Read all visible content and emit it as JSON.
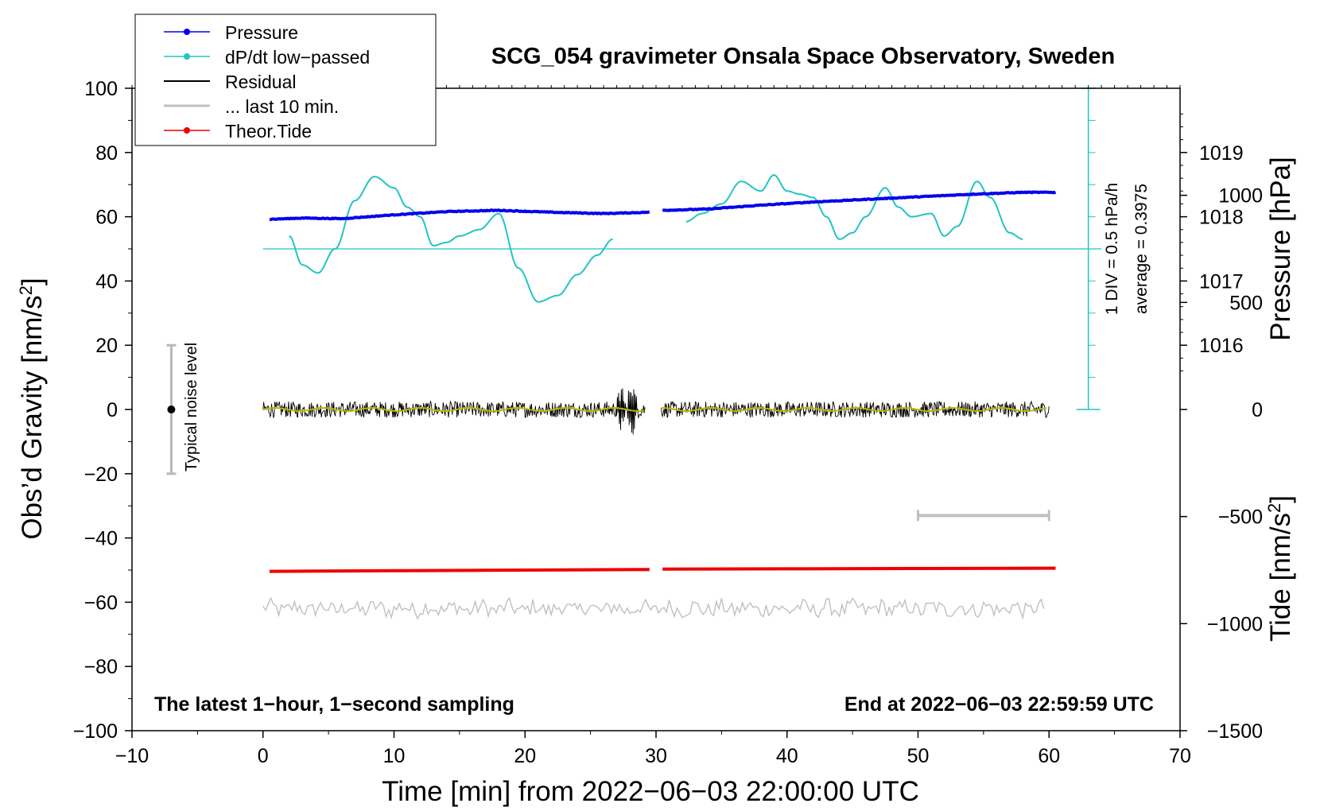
{
  "chart_data": {
    "type": "line",
    "title": "SCG_054 gravimeter Onsala Space Observatory, Sweden",
    "xlabel": "Time [min] from 2022−06−03 22:00:00 UTC",
    "xlim": [
      -10,
      70
    ],
    "x_ticks": [
      -10,
      0,
      10,
      20,
      30,
      40,
      50,
      60,
      70
    ],
    "x_tick_labels": [
      "−10",
      "0",
      "10",
      "20",
      "30",
      "40",
      "50",
      "60",
      "70"
    ],
    "left_axis": {
      "label_main": "Obs’d Gravity [nm/s",
      "label_sup": "2",
      "label_end": "]",
      "ylim": [
        -100,
        100
      ],
      "ticks": [
        -100,
        -80,
        -60,
        -40,
        -20,
        0,
        20,
        40,
        60,
        80,
        100
      ],
      "tick_labels": [
        "−100",
        "−80",
        "−60",
        "−40",
        "−20",
        "0",
        "20",
        "40",
        "60",
        "80",
        "100"
      ]
    },
    "pressure_axis": {
      "label": "Pressure [hPa]",
      "ticks": [
        1016,
        1017,
        1018,
        1019
      ],
      "tick_labels": [
        "1016",
        "1017",
        "1018",
        "1019"
      ],
      "left_equiv_per_hpa": 20,
      "left_equiv_at_1016": 20
    },
    "tide_axis": {
      "label_main": "Tide [nm/s",
      "label_sup": "2",
      "label_end": "]",
      "ticks": [
        -1500,
        -1000,
        -500,
        0,
        500,
        1000
      ],
      "tick_labels": [
        "−1500",
        "−1000",
        "−500",
        "0",
        "500",
        "1000"
      ],
      "ylim": [
        -1500,
        1500
      ]
    },
    "legend": {
      "placement": "top-left",
      "entries": [
        {
          "name": "Pressure",
          "color": "#0000ee",
          "marker": "dot"
        },
        {
          "name": "dP/dt low−passed",
          "color": "#22c4c4",
          "marker": "dot"
        },
        {
          "name": "Residual",
          "color": "#000000",
          "marker": "line"
        },
        {
          "name": "... last 10 min.",
          "color": "#c0c0c0",
          "marker": "line"
        },
        {
          "name": "Theor.Tide",
          "color": "#ee0000",
          "marker": "dot"
        }
      ]
    },
    "dpdt_scale": {
      "label_div": "1 DIV = 0.5 hPa/h",
      "label_avg": "average = 0.3975",
      "x": 63,
      "zero_level": 50,
      "top": 100,
      "bottom": 0
    },
    "noise_bar": {
      "label": "Typical noise level",
      "x": -7,
      "low": -20,
      "high": 20,
      "center": 0
    },
    "last10_bar": {
      "x_start": 50,
      "x_end": 60,
      "level": -33
    },
    "annotations": {
      "bottom_left": "The latest 1−hour, 1−second sampling",
      "bottom_right": "End at 2022−06−03 22:59:59 UTC"
    },
    "series": [
      {
        "name": "Pressure",
        "color": "#0000ee",
        "axis": "pressure",
        "segments": [
          {
            "x": [
              0.5,
              3,
              6,
              10,
              14,
              18,
              22,
              26,
              29.5
            ],
            "y": [
              1017.96,
              1017.98,
              1017.97,
              1018.03,
              1018.08,
              1018.1,
              1018.07,
              1018.05,
              1018.07
            ]
          },
          {
            "x": [
              30.5,
              34,
              38,
              42,
              46,
              50,
              54,
              58,
              60.5
            ],
            "y": [
              1018.1,
              1018.12,
              1018.18,
              1018.23,
              1018.27,
              1018.31,
              1018.35,
              1018.38,
              1018.38
            ]
          }
        ]
      },
      {
        "name": "dP/dt low−passed",
        "color": "#22c4c4",
        "axis": "left",
        "segments": [
          {
            "x": [
              2,
              3,
              4.2,
              5.5,
              7,
              8.5,
              10,
              11,
              12,
              13,
              14,
              15,
              16.5,
              18,
              19.5,
              21,
              22.5,
              24,
              25.5,
              26.7
            ],
            "y": [
              54,
              45,
              42.5,
              50,
              65,
              72.5,
              69,
              63,
              60,
              51,
              52,
              54,
              56,
              61,
              44,
              33.5,
              35.5,
              42,
              48,
              53
            ]
          },
          {
            "x": [
              32.3,
              33.5,
              35,
              36.5,
              38,
              39,
              40,
              41,
              42,
              43,
              44,
              45,
              46,
              47.5,
              48.5,
              49.5,
              51,
              52,
              53,
              54.5,
              55.5,
              57,
              58
            ],
            "y": [
              58.5,
              61,
              64,
              71,
              68,
              73,
              68,
              67,
              66,
              60,
              53,
              55,
              60,
              69,
              63,
              60,
              61,
              54,
              57,
              71,
              66,
              55,
              53
            ]
          }
        ]
      },
      {
        "name": "Residual",
        "color": "#000000",
        "axis": "left",
        "base": 0,
        "amplitude": 2.5,
        "segments": [
          [
            0,
            29.2
          ],
          [
            30.4,
            60
          ]
        ],
        "burst": {
          "x": 27.8,
          "max": 11,
          "min": -12
        }
      },
      {
        "name": "Residual smoothed",
        "color": "#b8b800",
        "axis": "left",
        "base": 0
      },
      {
        "name": "... last 10 min.",
        "color": "#c0c0c0",
        "axis": "left",
        "base": -62,
        "amplitude": 2.5,
        "segments": [
          [
            0,
            59.8
          ]
        ]
      },
      {
        "name": "Theor.Tide",
        "color": "#ee0000",
        "axis": "left",
        "segments": [
          {
            "x": [
              0.5,
              10,
              20,
              29.5
            ],
            "y": [
              -50.4,
              -50.2,
              -50,
              -49.8
            ]
          },
          {
            "x": [
              30.5,
              40,
              50,
              60.5
            ],
            "y": [
              -49.7,
              -49.6,
              -49.5,
              -49.4
            ]
          }
        ]
      }
    ]
  }
}
